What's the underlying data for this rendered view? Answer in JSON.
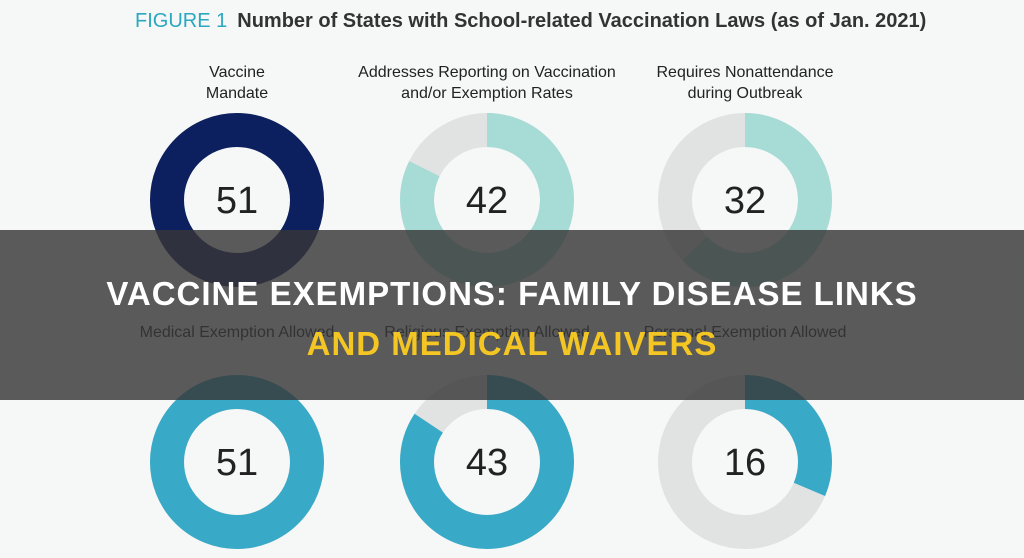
{
  "figure": {
    "label": "FIGURE 1",
    "title": "Number of States with School-related Vaccination Laws (as of Jan. 2021)"
  },
  "chart_data": [
    {
      "type": "donut",
      "title": "Vaccine Mandate",
      "values": [
        51
      ],
      "color": "#0c1f5e",
      "ylim": [
        0,
        51
      ]
    },
    {
      "type": "donut",
      "title": "Addresses Reporting on Vaccination and/or Exemption Rates",
      "values": [
        42
      ],
      "color": "#a6dcd5",
      "ylim": [
        0,
        51
      ]
    },
    {
      "type": "donut",
      "title": "Requires Nonattendance during Outbreak",
      "values": [
        32
      ],
      "color": "#a6dcd5",
      "ylim": [
        0,
        51
      ]
    },
    {
      "type": "donut",
      "title": "Medical Exemption Allowed",
      "values": [
        51
      ],
      "color": "#38a9c6",
      "ylim": [
        0,
        51
      ]
    },
    {
      "type": "donut",
      "title": "Religious Exemption Allowed",
      "values": [
        43
      ],
      "color": "#38a9c6",
      "ylim": [
        0,
        51
      ]
    },
    {
      "type": "donut",
      "title": "Personal Exemption Allowed",
      "values": [
        16
      ],
      "color": "#38a9c6",
      "ylim": [
        0,
        51
      ]
    }
  ],
  "overlay": {
    "lines": [
      "VACCINE EXEMPTIONS: FAMILY DISEASE LINKS",
      "AND MEDICAL WAIVERS"
    ]
  }
}
